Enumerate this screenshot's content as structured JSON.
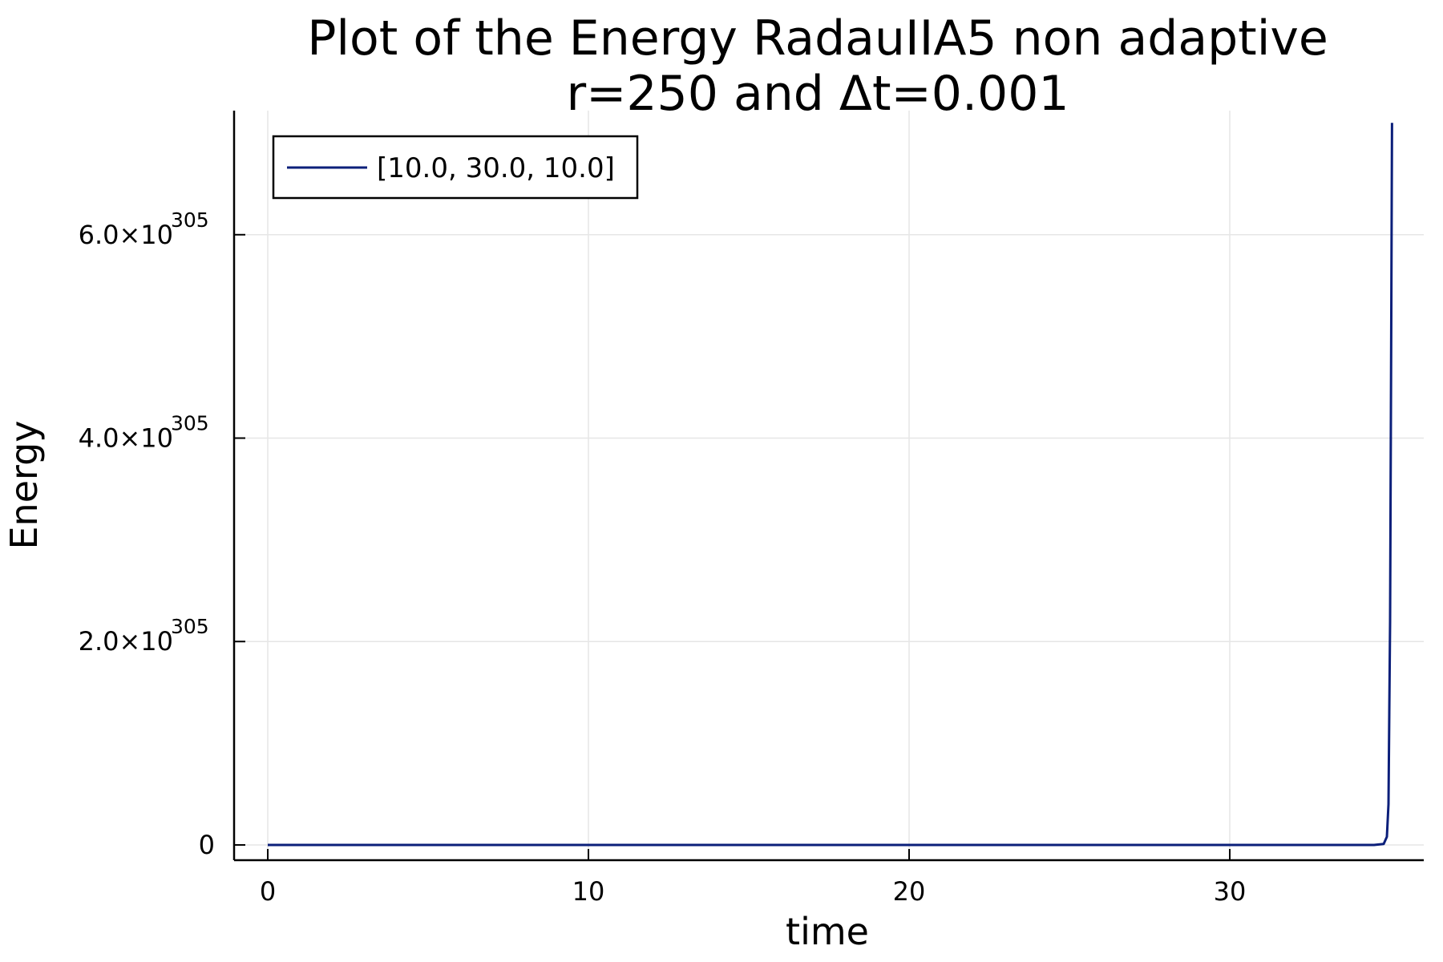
{
  "chart_data": {
    "type": "line",
    "title_line1": "Plot of the Energy RadauIIA5 non adaptive",
    "title_line2": "r=250 and Δt=0.001",
    "xlabel": "time",
    "ylabel": "Energy",
    "xlim": [
      -1.05,
      36.05
    ],
    "ylim": [
      -1.5e+304,
      7.22e+305
    ],
    "x_ticks": [
      {
        "value": 0,
        "label": "0"
      },
      {
        "value": 10,
        "label": "10"
      },
      {
        "value": 20,
        "label": "20"
      },
      {
        "value": 30,
        "label": "30"
      }
    ],
    "y_ticks": [
      {
        "value": 0,
        "mantissa": "0",
        "exponent": ""
      },
      {
        "value": 2e+305,
        "mantissa": "2.0×10",
        "exponent": "305"
      },
      {
        "value": 4e+305,
        "mantissa": "4.0×10",
        "exponent": "305"
      },
      {
        "value": 6e+305,
        "mantissa": "6.0×10",
        "exponent": "305"
      }
    ],
    "grid": true,
    "legend_position": "top-left",
    "series": [
      {
        "name": "[10.0, 30.0, 10.0]",
        "color": "#0b1f7a",
        "x": [
          0,
          10,
          20,
          30,
          34.5,
          34.8,
          34.9,
          34.95,
          35.0,
          35.03,
          35.06
        ],
        "y": [
          0,
          0,
          0,
          0,
          0,
          1e+303,
          8e+303,
          4e+304,
          2.2e+305,
          4.6e+305,
          7.1e+305
        ]
      }
    ]
  }
}
